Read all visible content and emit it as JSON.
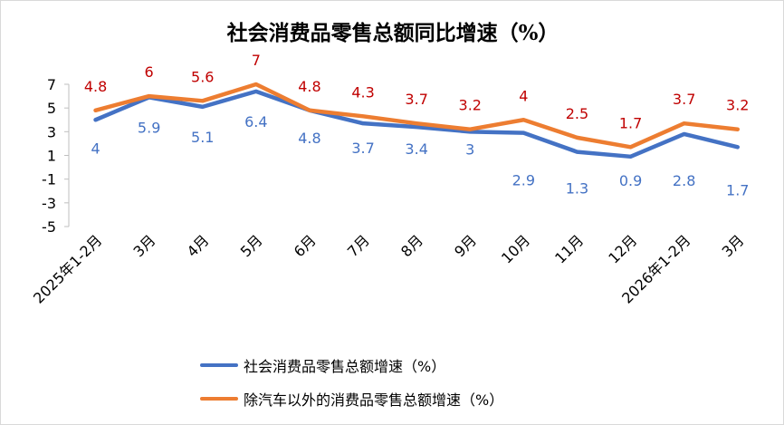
{
  "chart_data": {
    "type": "line",
    "title": "社会消费品零售总额同比增速（%）",
    "xlabel": "",
    "ylabel": "",
    "ylim": [
      -5,
      7
    ],
    "yticks": [
      7,
      5,
      3,
      1,
      -1,
      -3,
      -5
    ],
    "grid": false,
    "legend_position": "bottom",
    "categories": [
      "2025年1-2月",
      "3月",
      "4月",
      "5月",
      "6月",
      "7月",
      "8月",
      "9月",
      "10月",
      "11月",
      "12月",
      "2026年1-2月",
      "3月"
    ],
    "series": [
      {
        "name": "社会消费品零售总额增速（%）",
        "color": "#4472C4",
        "label_color": "#4472C4",
        "values": [
          4,
          5.9,
          5.1,
          6.4,
          4.8,
          3.7,
          3.4,
          3,
          2.9,
          1.3,
          0.9,
          2.8,
          1.7
        ]
      },
      {
        "name": "除汽车以外的消费品零售总额增速（%）",
        "color": "#ED7D31",
        "label_color": "#C00000",
        "values": [
          4.8,
          6,
          5.6,
          7,
          4.8,
          4.3,
          3.7,
          3.2,
          4,
          2.5,
          1.7,
          3.7,
          3.2
        ]
      }
    ]
  }
}
